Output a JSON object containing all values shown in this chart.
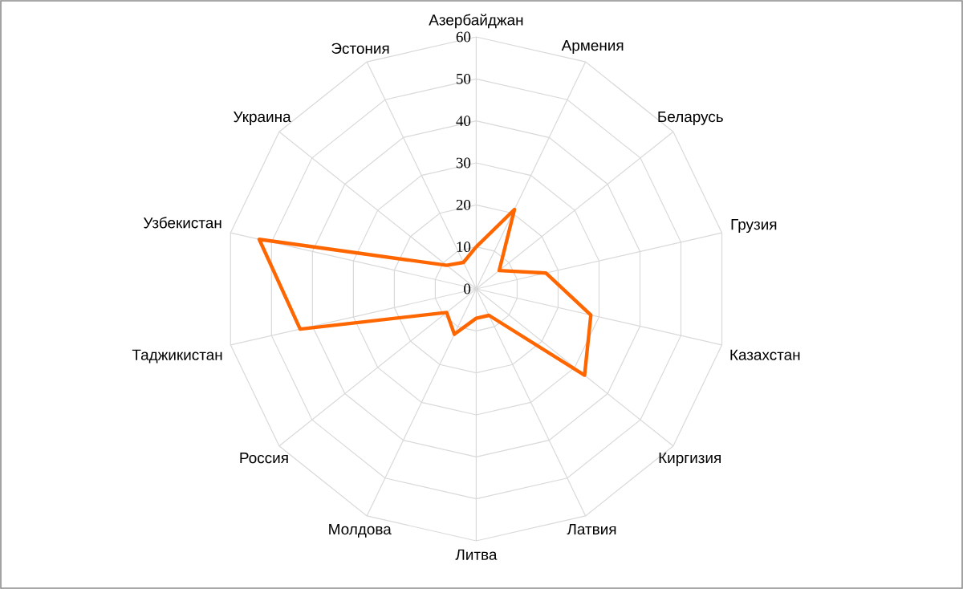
{
  "chart_data": {
    "type": "radar",
    "categories": [
      "Азербайджан",
      "Армения",
      "Беларусь",
      "Грузия",
      "Казахстан",
      "Киргизия",
      "Латвия",
      "Литва",
      "Молдова",
      "Россия",
      "Таджикистан",
      "Узбекистан",
      "Украина",
      "Эстония"
    ],
    "series": [
      {
        "color": "#ff6600",
        "values": [
          10,
          21,
          7,
          17,
          28,
          33,
          7,
          7,
          12,
          9,
          43,
          53,
          9,
          7
        ]
      }
    ],
    "ylim": [
      0,
      60
    ],
    "yticks": [
      0,
      10,
      20,
      30,
      40,
      50,
      60
    ],
    "grid": true
  }
}
